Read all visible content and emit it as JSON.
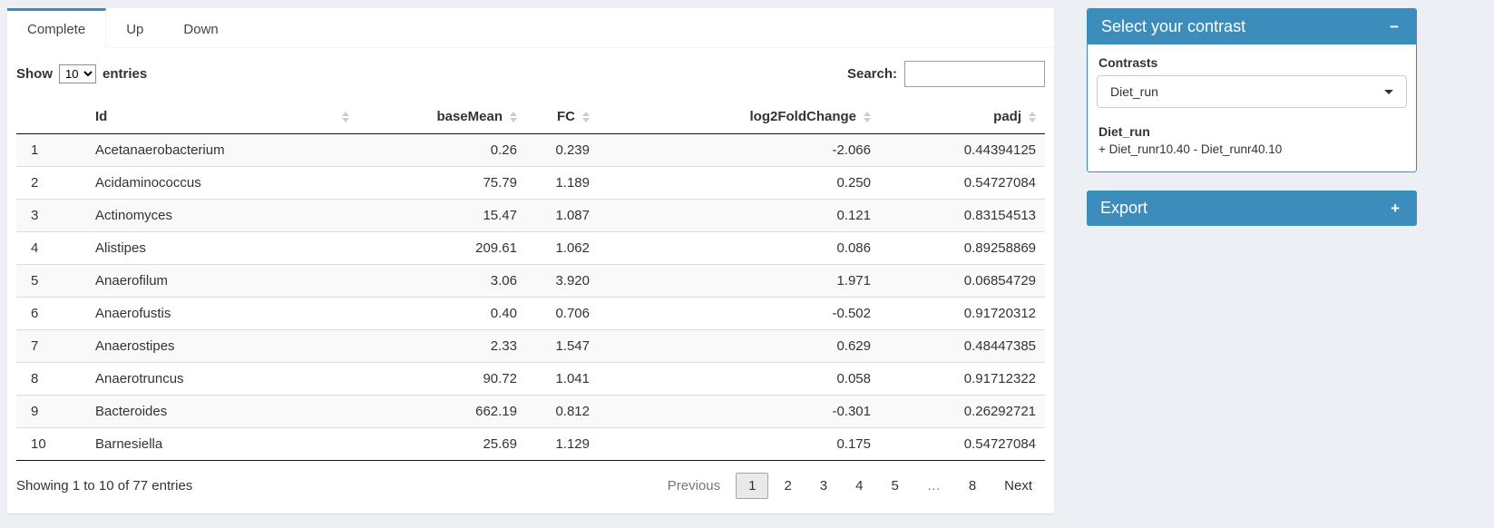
{
  "colors": {
    "primary": "#3c8dbc",
    "page_bg": "#ecf0f5",
    "stripe": "#f9f9f9",
    "table_border_dark": "#111111",
    "table_border_light": "#dddddd"
  },
  "tabs": [
    {
      "label": "Complete",
      "active": true
    },
    {
      "label": "Up",
      "active": false
    },
    {
      "label": "Down",
      "active": false
    }
  ],
  "toolbar": {
    "show_label": "Show",
    "page_size": "10",
    "entries_label": "entries",
    "search_label": "Search:",
    "search_value": ""
  },
  "table": {
    "headers": [
      "",
      "Id",
      "baseMean",
      "FC",
      "log2FoldChange",
      "padj"
    ],
    "rows": [
      [
        "1",
        "Acetanaerobacterium",
        "0.26",
        "0.239",
        "-2.066",
        "0.44394125"
      ],
      [
        "2",
        "Acidaminococcus",
        "75.79",
        "1.189",
        "0.250",
        "0.54727084"
      ],
      [
        "3",
        "Actinomyces",
        "15.47",
        "1.087",
        "0.121",
        "0.83154513"
      ],
      [
        "4",
        "Alistipes",
        "209.61",
        "1.062",
        "0.086",
        "0.89258869"
      ],
      [
        "5",
        "Anaerofilum",
        "3.06",
        "3.920",
        "1.971",
        "0.06854729"
      ],
      [
        "6",
        "Anaerofustis",
        "0.40",
        "0.706",
        "-0.502",
        "0.91720312"
      ],
      [
        "7",
        "Anaerostipes",
        "2.33",
        "1.547",
        "0.629",
        "0.48447385"
      ],
      [
        "8",
        "Anaerotruncus",
        "90.72",
        "1.041",
        "0.058",
        "0.91712322"
      ],
      [
        "9",
        "Bacteroides",
        "662.19",
        "0.812",
        "-0.301",
        "0.26292721"
      ],
      [
        "10",
        "Barnesiella",
        "25.69",
        "1.129",
        "0.175",
        "0.54727084"
      ]
    ]
  },
  "footer": {
    "info": "Showing 1 to 10 of 77 entries",
    "pagination": [
      "Previous",
      "1",
      "2",
      "3",
      "4",
      "5",
      "…",
      "8",
      "Next"
    ],
    "active_page": "1"
  },
  "sidebar": {
    "contrast_box": {
      "title": "Select your contrast",
      "collapse_icon": "minus-icon",
      "contrasts_label": "Contrasts",
      "selected_contrast": "Diet_run",
      "contrast_name": "Diet_run",
      "contrast_formula": "+ Diet_runr10.40 - Diet_runr40.10"
    },
    "export_box": {
      "title": "Export",
      "collapse_icon": "plus-icon"
    }
  }
}
